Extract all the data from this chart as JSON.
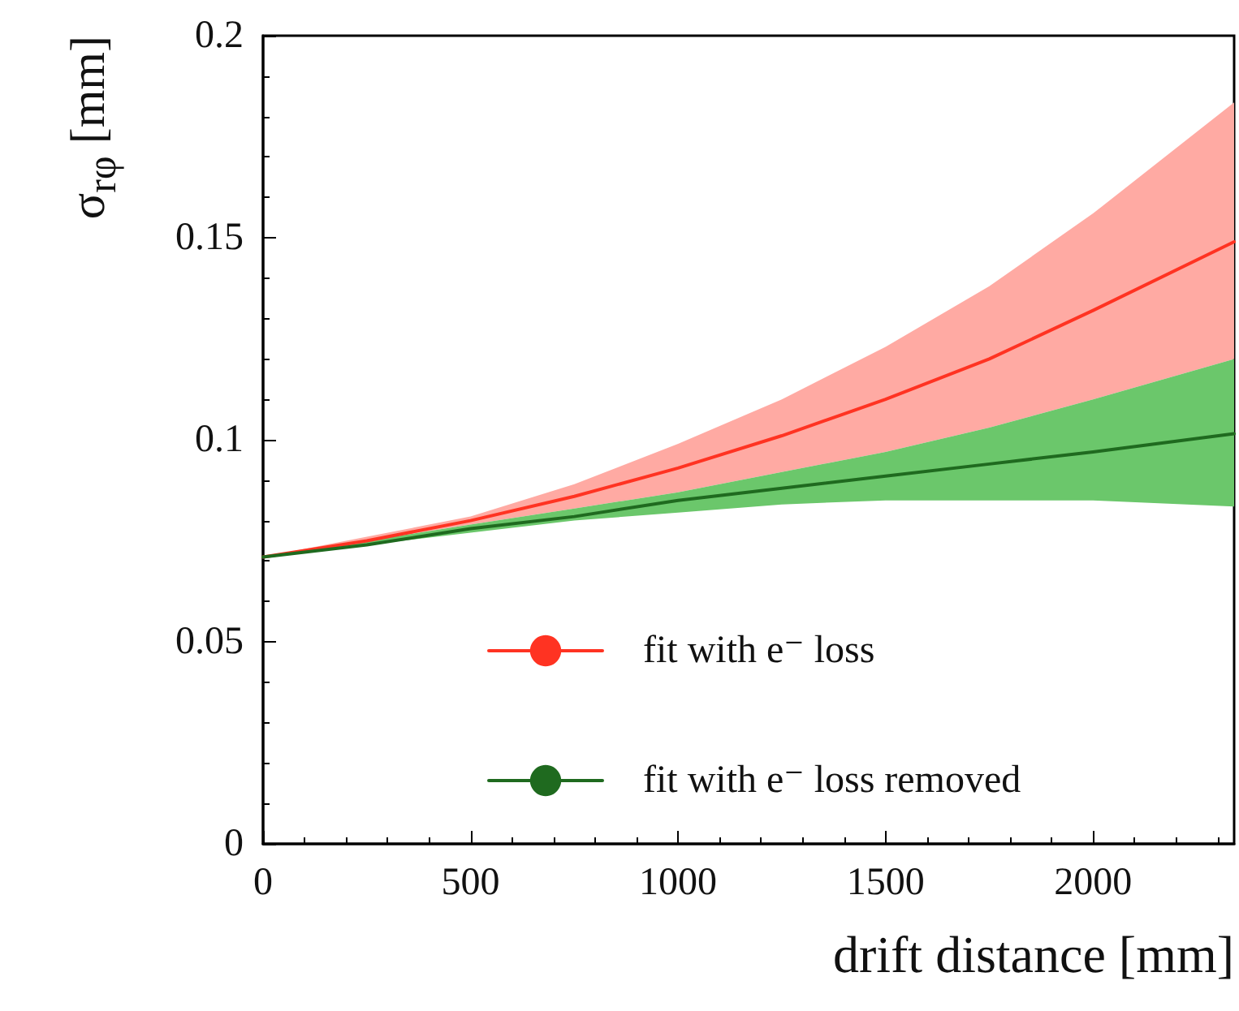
{
  "chart_data": {
    "type": "line",
    "xlabel": "drift distance [mm]",
    "ylabel": "σ$_{rφ}$ [mm]",
    "xlim": [
      0,
      2340
    ],
    "xticks": [
      0,
      500,
      1000,
      1500,
      2000
    ],
    "ylim": [
      0,
      0.2
    ],
    "yticks": [
      0,
      0.05,
      0.1,
      0.15,
      0.2
    ],
    "x": [
      0,
      250,
      500,
      750,
      1000,
      1250,
      1500,
      1750,
      2000,
      2340
    ],
    "series": [
      {
        "name": "fit with e⁻ loss",
        "color": "#ff3322",
        "values": [
          0.071,
          0.075,
          0.08,
          0.086,
          0.093,
          0.101,
          0.11,
          0.12,
          0.132,
          0.149
        ],
        "lower": [
          0.071,
          0.075,
          0.079,
          0.083,
          0.087,
          0.092,
          0.097,
          0.103,
          0.11,
          0.12
        ],
        "upper": [
          0.071,
          0.076,
          0.081,
          0.089,
          0.099,
          0.11,
          0.123,
          0.138,
          0.156,
          0.1835
        ]
      },
      {
        "name": "fit with e⁻ loss removed",
        "color": "#1f6a1f",
        "values": [
          0.071,
          0.074,
          0.078,
          0.081,
          0.085,
          0.088,
          0.091,
          0.094,
          0.097,
          0.1015
        ],
        "lower": [
          0.071,
          0.074,
          0.077,
          0.08,
          0.082,
          0.084,
          0.085,
          0.085,
          0.085,
          0.0835
        ],
        "upper": [
          0.071,
          0.075,
          0.079,
          0.083,
          0.087,
          0.092,
          0.097,
          0.103,
          0.11,
          0.12
        ]
      }
    ],
    "grid": false,
    "legend": "bottom",
    "marker": "none",
    "line_style": "solid"
  }
}
